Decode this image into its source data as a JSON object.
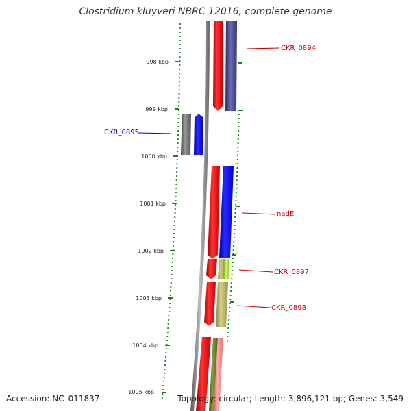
{
  "header": {
    "title": "Clostridium kluyveri NBRC 12016, complete genome"
  },
  "footer": {
    "accession": "Accession: NC_011837",
    "summary": "Topology: circular; Length: 3,896,121 bp; Genes: 3,549"
  },
  "scale": {
    "ticks": [
      "998 kbp",
      "999 kbp",
      "1000 kbp",
      "1001 kbp",
      "1002 kbp",
      "1003 kbp",
      "1004 kbp",
      "1005 kbp"
    ]
  },
  "genes": [
    {
      "name": "CKR_0894",
      "color": "#cc0000"
    },
    {
      "name": "CKR_0895",
      "color": "#0000cc"
    },
    {
      "name": "nadE",
      "color": "#cc0000"
    },
    {
      "name": "CKR_0897",
      "color": "#cc0000"
    },
    {
      "name": "CKR_0898",
      "color": "#cc0000"
    }
  ],
  "colors": {
    "backbone": "#8a8a8a",
    "cds_forward": "#ff0000",
    "cds_blue": "#0000ff",
    "cds_purple": "#3a3a8a",
    "cds_gray": "#666666",
    "cds_khaki": "#b8b070",
    "cds_lime": "#99ee33",
    "cds_olive": "#667722",
    "cds_pink": "#ee8888",
    "gc_dots": "#2a8a2a"
  }
}
